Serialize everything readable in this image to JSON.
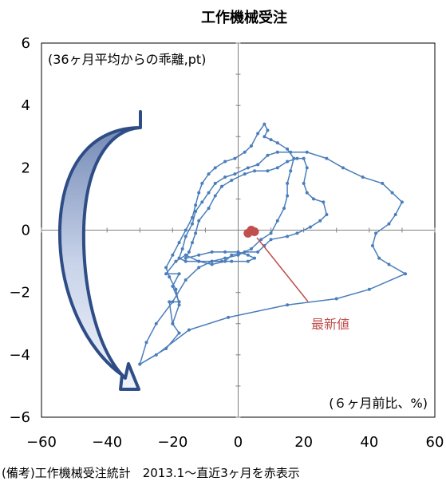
{
  "chart_data": {
    "type": "line",
    "title": "工作機械受注",
    "ylabel": "(36ヶ月平均からの乖離,pt)",
    "xlabel": "(６ヶ月前比、%)",
    "xlim": [
      -60,
      60
    ],
    "ylim": [
      -6,
      6
    ],
    "x_ticks": [
      "−60",
      "−40",
      "−20",
      "0",
      "20",
      "40",
      "60"
    ],
    "y_ticks": [
      "6",
      "4",
      "2",
      "0",
      "−2",
      "−4",
      "−6"
    ],
    "grid": false,
    "source": "(備考)工作機械受注統計　2013.1〜直近3ヶ月を赤表示",
    "annotation": "最新値",
    "series": [
      {
        "color": "#4a7ebb",
        "points": [
          [
            -30,
            -4.3
          ],
          [
            -22,
            -3.8
          ],
          [
            -18,
            -3.3
          ],
          [
            -20,
            -3.0
          ],
          [
            -21,
            -2.3
          ],
          [
            -18,
            -2.3
          ],
          [
            -20,
            -1.8
          ],
          [
            -18,
            -1.4
          ],
          [
            -22,
            -1.4
          ],
          [
            -19,
            -1.0
          ],
          [
            -16,
            -0.8
          ],
          [
            -12,
            -1.0
          ],
          [
            -8,
            -1.1
          ],
          [
            -4,
            -1.0
          ],
          [
            -2,
            -0.8
          ],
          [
            2,
            -0.7
          ],
          [
            6,
            -0.7
          ],
          [
            8,
            -0.5
          ],
          [
            10,
            -0.3
          ],
          [
            15,
            -0.2
          ],
          [
            18,
            -0.1
          ],
          [
            22,
            0.1
          ],
          [
            25,
            0.3
          ],
          [
            27,
            0.5
          ],
          [
            26,
            0.9
          ],
          [
            23,
            1.0
          ],
          [
            21,
            1.2
          ],
          [
            20,
            1.5
          ],
          [
            21,
            2.0
          ],
          [
            20,
            2.3
          ],
          [
            18,
            2.3
          ],
          [
            15,
            2.2
          ],
          [
            12,
            2.0
          ],
          [
            9,
            1.9
          ],
          [
            5,
            1.9
          ],
          [
            2,
            1.8
          ],
          [
            -2,
            1.6
          ],
          [
            -5,
            1.4
          ],
          [
            -7,
            1.1
          ],
          [
            -9,
            0.7
          ],
          [
            -12,
            0.3
          ],
          [
            -13,
            -0.1
          ],
          [
            -14,
            -0.4
          ],
          [
            -15,
            -0.7
          ],
          [
            -16,
            -0.9
          ],
          [
            -12,
            -0.8
          ],
          [
            -8,
            -0.7
          ],
          [
            -4,
            -0.7
          ],
          [
            0,
            -0.7
          ],
          [
            3,
            -0.8
          ],
          [
            5,
            -0.9
          ],
          [
            3,
            -1.0
          ],
          [
            -2,
            -1.0
          ],
          [
            -5,
            -1.0
          ],
          [
            -8,
            -1.0
          ],
          [
            -12,
            -1.0
          ],
          [
            -16,
            -1.0
          ],
          [
            -18,
            -0.9
          ],
          [
            -17,
            -0.6
          ],
          [
            -16,
            -0.2
          ],
          [
            -14,
            0.2
          ],
          [
            -13,
            0.6
          ],
          [
            -11,
            0.9
          ],
          [
            -9,
            1.2
          ],
          [
            -7,
            1.5
          ],
          [
            -4,
            1.7
          ],
          [
            -1,
            1.8
          ],
          [
            3,
            2.0
          ],
          [
            6,
            2.1
          ],
          [
            9,
            2.4
          ],
          [
            12,
            2.5
          ],
          [
            16,
            2.5
          ],
          [
            21,
            2.5
          ],
          [
            27,
            2.3
          ],
          [
            32,
            2.0
          ],
          [
            38,
            1.7
          ],
          [
            44,
            1.5
          ],
          [
            47,
            1.2
          ],
          [
            50,
            0.9
          ],
          [
            48,
            0.5
          ],
          [
            46,
            0.2
          ],
          [
            42,
            -0.1
          ],
          [
            41,
            -0.5
          ],
          [
            43,
            -0.9
          ],
          [
            46,
            -1.1
          ],
          [
            51,
            -1.4
          ],
          [
            40,
            -1.9
          ],
          [
            30,
            -2.2
          ],
          [
            15,
            -2.4
          ],
          [
            -3,
            -2.8
          ],
          [
            -15,
            -3.2
          ],
          [
            -25,
            -4.0
          ],
          [
            -30,
            -4.3
          ],
          [
            -28,
            -3.6
          ],
          [
            -25,
            -3.0
          ],
          [
            -20,
            -2.3
          ],
          [
            -16,
            -1.6
          ],
          [
            -12,
            -1.2
          ],
          [
            -8,
            -1.0
          ],
          [
            -4,
            -0.9
          ],
          [
            0,
            -0.8
          ],
          [
            4,
            -0.6
          ],
          [
            7,
            -0.3
          ],
          [
            10,
            -0.1
          ],
          [
            12,
            0.3
          ],
          [
            14,
            0.7
          ],
          [
            15,
            1.1
          ],
          [
            15,
            1.5
          ],
          [
            16,
            1.9
          ],
          [
            17,
            2.3
          ],
          [
            15,
            2.6
          ],
          [
            12,
            2.8
          ],
          [
            10,
            2.9
          ],
          [
            8,
            3.0
          ],
          [
            9,
            3.2
          ],
          [
            8,
            3.4
          ],
          [
            6,
            3.1
          ],
          [
            4,
            2.7
          ],
          [
            2,
            2.5
          ],
          [
            -1,
            2.3
          ],
          [
            -4,
            2.2
          ],
          [
            -7,
            2.0
          ],
          [
            -9,
            1.8
          ],
          [
            -11,
            1.5
          ],
          [
            -12,
            1.2
          ],
          [
            -13,
            0.8
          ],
          [
            -14,
            0.4
          ],
          [
            -16,
            0.0
          ],
          [
            -18,
            -0.4
          ],
          [
            -20,
            -0.8
          ],
          [
            -22,
            -1.2
          ],
          [
            -21,
            -1.5
          ],
          [
            -19,
            -1.9
          ],
          [
            -18,
            -2.4
          ],
          [
            -20,
            -3.0
          ]
        ]
      },
      {
        "color": "#c0504d",
        "points": [
          [
            3,
            -0.1
          ],
          [
            5,
            -0.05
          ],
          [
            4,
            0.0
          ]
        ]
      }
    ]
  }
}
